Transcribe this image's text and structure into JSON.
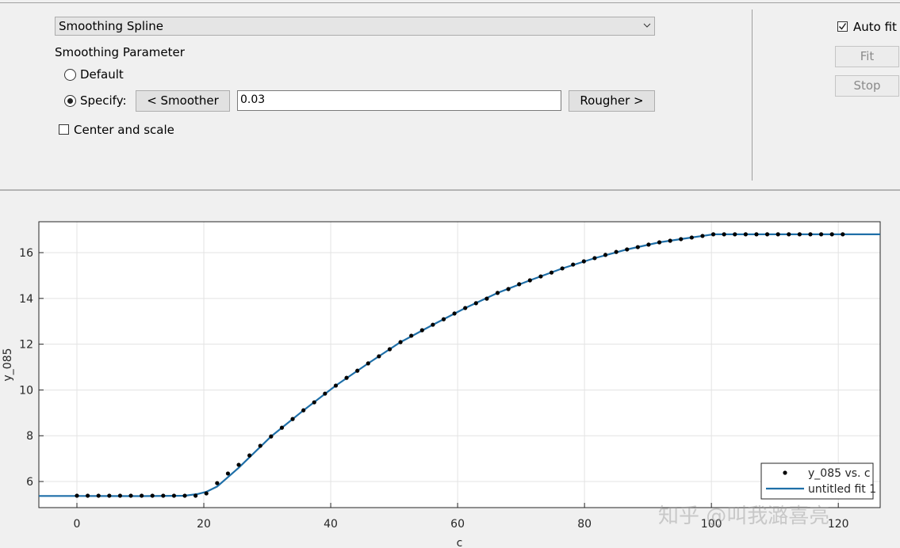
{
  "panel": {
    "fit_type": "Smoothing Spline",
    "parameter_label": "Smoothing Parameter",
    "default_option": "Default",
    "specify_option": "Specify:",
    "smoother_button": "< Smoother",
    "parameter_value": "0.03",
    "rougher_button": "Rougher >",
    "center_scale": "Center and scale",
    "auto_fit": "Auto fit",
    "fit_button": "Fit",
    "stop_button": "Stop"
  },
  "chart_data": {
    "type": "line",
    "xlabel": "c",
    "ylabel": "y_085",
    "xlim": [
      -6,
      126.6
    ],
    "ylim": [
      4.86,
      17.35
    ],
    "xticks": [
      0,
      20,
      40,
      60,
      80,
      100,
      120
    ],
    "yticks": [
      6,
      8,
      10,
      12,
      14,
      16
    ],
    "grid": true,
    "legend": "lower right",
    "series": [
      {
        "name": "y_085 vs. c",
        "color": "#000000",
        "marker": "dot",
        "x": [
          0,
          1.7,
          3.4,
          5.1,
          6.8,
          8.5,
          10.2,
          11.9,
          13.6,
          15.3,
          17,
          18.7,
          20.4,
          22.1,
          23.8,
          25.5,
          27.2,
          28.9,
          30.6,
          32.3,
          34,
          35.7,
          37.4,
          39.1,
          40.8,
          42.5,
          44.2,
          45.9,
          47.6,
          49.3,
          51,
          52.7,
          54.4,
          56.1,
          57.8,
          59.5,
          61.2,
          62.9,
          64.6,
          66.3,
          68,
          69.7,
          71.4,
          73.1,
          74.8,
          76.5,
          78.2,
          79.9,
          81.6,
          83.3,
          85,
          86.7,
          88.4,
          90.1,
          91.8,
          93.5,
          95.2,
          96.9,
          98.6,
          100.3,
          102,
          103.7,
          105.4,
          107.1,
          108.8,
          110.5,
          112.2,
          113.9,
          115.6,
          117.3,
          119,
          120.7
        ],
        "values": [
          5.38,
          5.38,
          5.38,
          5.38,
          5.38,
          5.38,
          5.38,
          5.38,
          5.38,
          5.38,
          5.38,
          5.38,
          5.48,
          5.93,
          6.35,
          6.73,
          7.14,
          7.56,
          7.97,
          8.35,
          8.73,
          9.11,
          9.46,
          9.84,
          10.19,
          10.53,
          10.84,
          11.16,
          11.47,
          11.78,
          12.09,
          12.37,
          12.61,
          12.85,
          13.09,
          13.34,
          13.58,
          13.79,
          13.99,
          14.24,
          14.41,
          14.62,
          14.79,
          14.96,
          15.13,
          15.31,
          15.48,
          15.62,
          15.76,
          15.9,
          16.03,
          16.14,
          16.24,
          16.35,
          16.45,
          16.52,
          16.59,
          16.66,
          16.73,
          16.8,
          16.8,
          16.8,
          16.8,
          16.8,
          16.8,
          16.8,
          16.8,
          16.8,
          16.8,
          16.8,
          16.8,
          16.8
        ]
      },
      {
        "name": "untitled fit 1",
        "color": "#1f6fa8",
        "marker": "line",
        "x": [
          -6,
          0,
          10,
          17,
          19,
          20.4,
          22.1,
          25.5,
          30.6,
          35.7,
          40.8,
          45.9,
          51,
          56.1,
          61.2,
          66.3,
          71.4,
          76.5,
          81.6,
          86.7,
          91.8,
          96.9,
          100.3,
          110,
          126.6
        ],
        "values": [
          5.37,
          5.37,
          5.36,
          5.38,
          5.45,
          5.55,
          5.78,
          6.6,
          7.97,
          9.11,
          10.19,
          11.16,
          12.09,
          12.85,
          13.58,
          14.24,
          14.79,
          15.31,
          15.76,
          16.14,
          16.45,
          16.66,
          16.8,
          16.8,
          16.8
        ]
      }
    ]
  },
  "watermark": "知乎 @叫我潞喜亮"
}
